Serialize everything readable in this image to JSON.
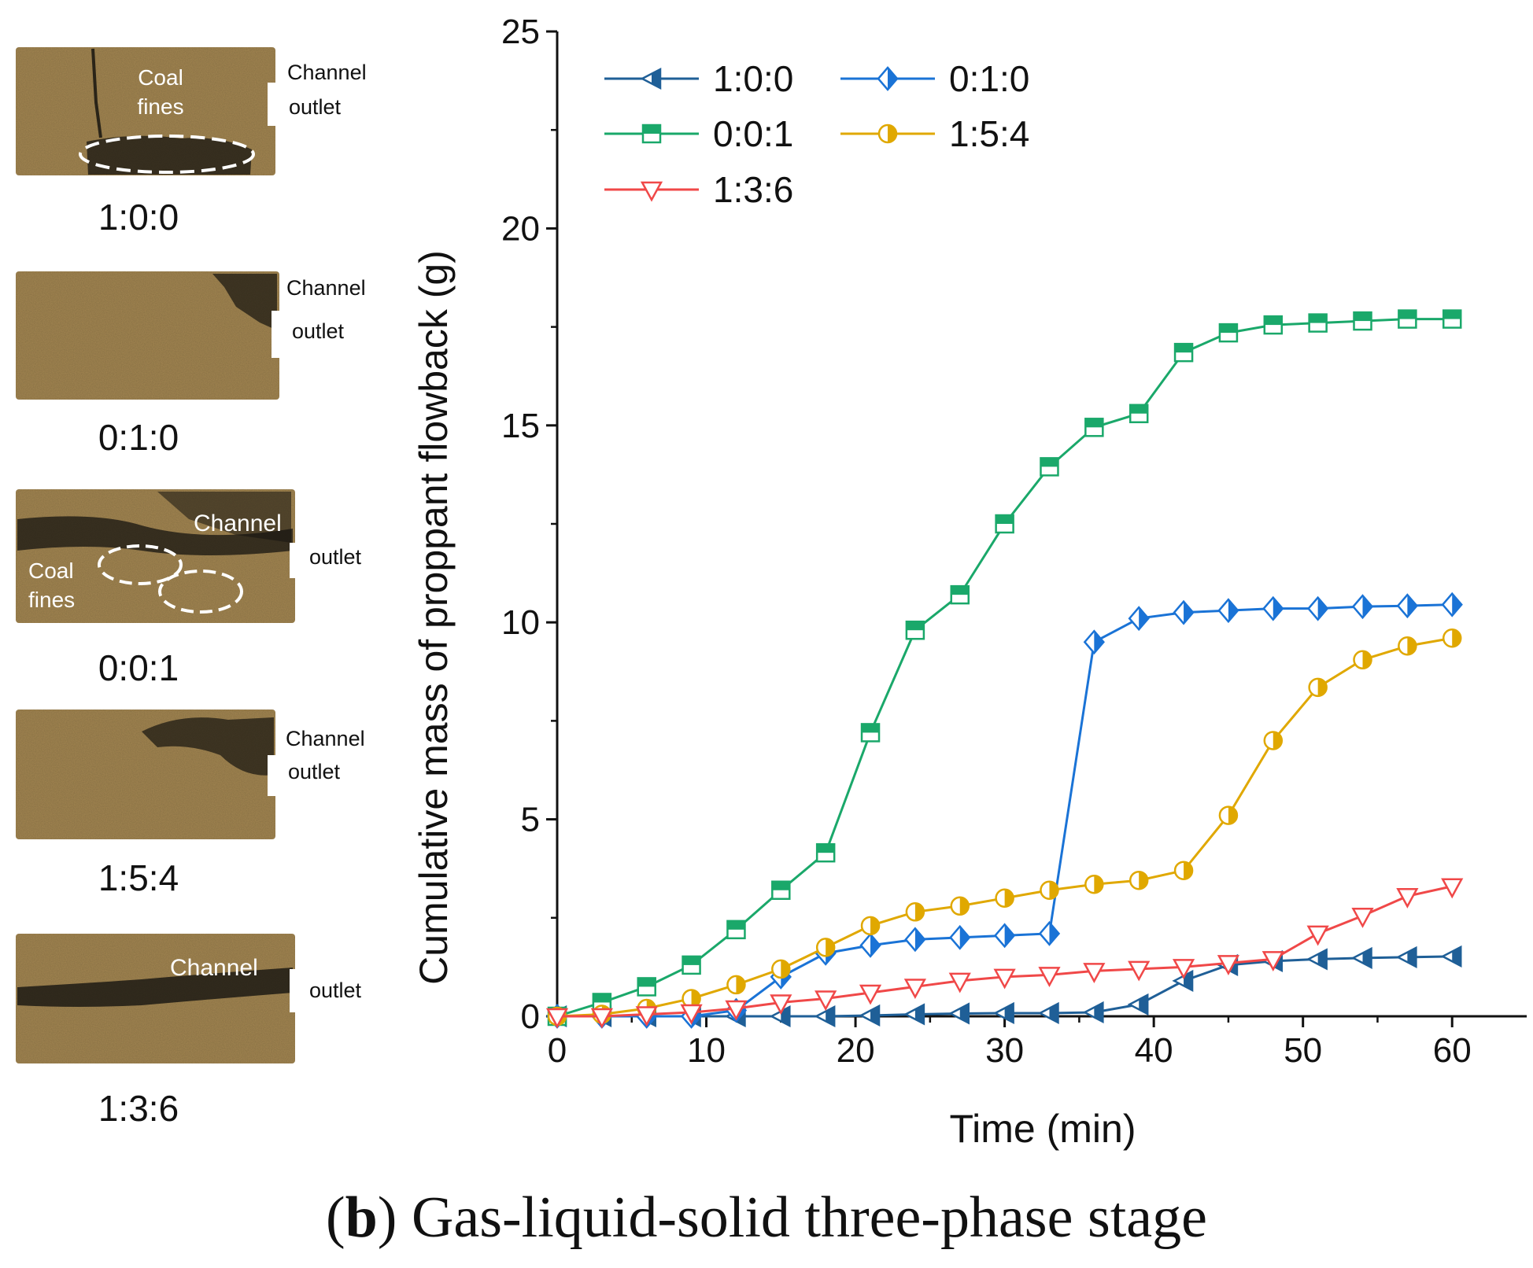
{
  "caption": {
    "letter": "b",
    "paren_open": "(",
    "paren_close": ")",
    "text": " Gas-liquid-solid three-phase stage"
  },
  "panels": [
    {
      "ratio": "1:0:0",
      "labels": [
        "Coal",
        "fines",
        "Channel",
        "outlet"
      ]
    },
    {
      "ratio": "0:1:0",
      "labels": [
        "Channel",
        "outlet"
      ]
    },
    {
      "ratio": "0:0:1",
      "labels": [
        "Channel",
        "outlet",
        "Coal",
        "fines"
      ]
    },
    {
      "ratio": "1:5:4",
      "labels": [
        "Channel",
        "outlet"
      ]
    },
    {
      "ratio": "1:3:6",
      "labels": [
        "Channel",
        "outlet"
      ]
    }
  ],
  "colors": {
    "1:0:0": "#1f5f97",
    "0:1:0": "#1a73d6",
    "0:0:1": "#1aa86a",
    "1:5:4": "#e0a800",
    "1:3:6": "#f04848",
    "sample_base": "#a48652",
    "sample_void": "#151410"
  },
  "chart_data": {
    "type": "line",
    "xlabel": "Time (min)",
    "ylabel": "Cumulative mass of proppant flowback (g)",
    "xlim": [
      0,
      65
    ],
    "ylim": [
      0,
      25
    ],
    "xticks": [
      0,
      10,
      20,
      30,
      40,
      50,
      60
    ],
    "yticks": [
      0,
      5,
      10,
      15,
      20,
      25
    ],
    "legend_position": "top-left",
    "x": [
      0,
      3,
      6,
      9,
      12,
      15,
      18,
      21,
      24,
      27,
      30,
      33,
      36,
      39,
      42,
      45,
      48,
      51,
      54,
      57,
      60
    ],
    "series": [
      {
        "name": "1:0:0",
        "marker": "triangle-left-half",
        "values": [
          0,
          0,
          0,
          0,
          0,
          0,
          0,
          0.02,
          0.05,
          0.07,
          0.08,
          0.08,
          0.1,
          0.3,
          0.9,
          1.3,
          1.4,
          1.45,
          1.48,
          1.5,
          1.52
        ]
      },
      {
        "name": "0:1:0",
        "marker": "diamond-half",
        "values": [
          0,
          0,
          0,
          0,
          0.15,
          1.0,
          1.6,
          1.8,
          1.95,
          2.0,
          2.05,
          2.1,
          9.5,
          10.1,
          10.25,
          10.3,
          10.35,
          10.35,
          10.4,
          10.42,
          10.45
        ]
      },
      {
        "name": "0:0:1",
        "marker": "square-half",
        "values": [
          0,
          0.35,
          0.75,
          1.3,
          2.2,
          3.2,
          4.15,
          7.2,
          9.8,
          10.7,
          12.5,
          13.95,
          14.95,
          15.3,
          16.85,
          17.35,
          17.55,
          17.6,
          17.65,
          17.7,
          17.7
        ]
      },
      {
        "name": "1:5:4",
        "marker": "circle-half",
        "values": [
          0,
          0.05,
          0.2,
          0.45,
          0.8,
          1.2,
          1.75,
          2.3,
          2.65,
          2.8,
          3.0,
          3.2,
          3.35,
          3.45,
          3.7,
          5.1,
          7.0,
          8.35,
          9.05,
          9.4,
          9.6
        ]
      },
      {
        "name": "1:3:6",
        "marker": "triangle-down",
        "values": [
          0,
          0,
          0.05,
          0.1,
          0.2,
          0.35,
          0.45,
          0.6,
          0.75,
          0.9,
          1.0,
          1.05,
          1.15,
          1.2,
          1.25,
          1.35,
          1.45,
          2.1,
          2.55,
          3.05,
          3.3
        ]
      }
    ]
  }
}
